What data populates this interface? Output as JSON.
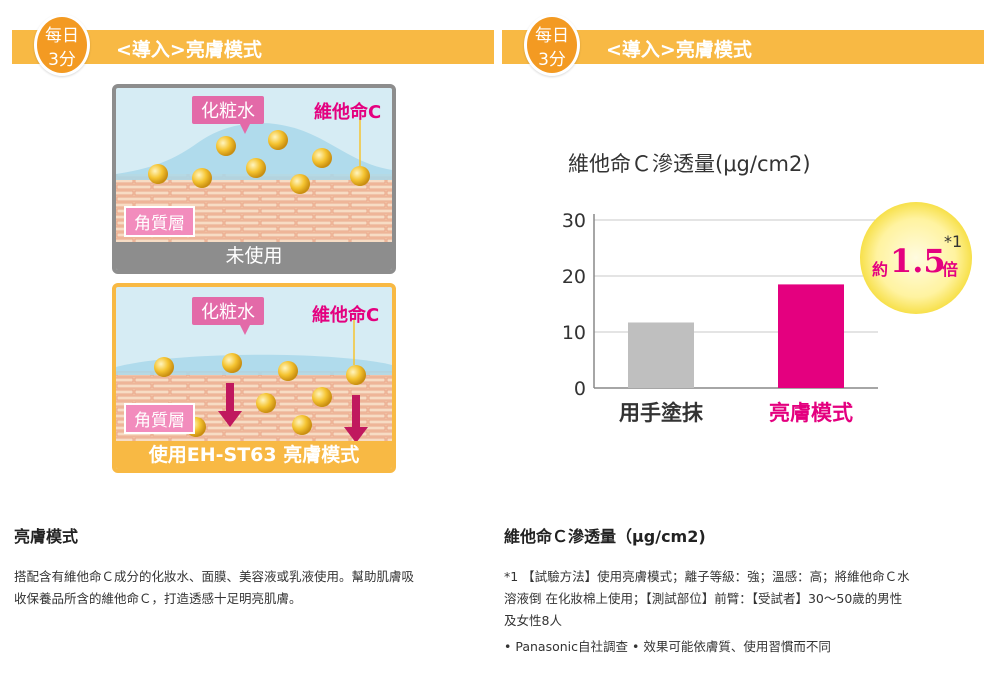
{
  "left_panel": {
    "badge": {
      "line1": "每日",
      "line2": "3分"
    },
    "header_title": "<導入>亮膚模式",
    "illustration_before": {
      "toner_label": "化粧水",
      "vitamin_label": "維他命C",
      "layer_label": "角質層",
      "caption": "未使用"
    },
    "illustration_after": {
      "toner_label": "化粧水",
      "vitamin_label": "維他命C",
      "layer_label": "角質層",
      "caption": "使用EH-ST63 亮膚模式"
    },
    "section_title": "亮膚模式",
    "description_line1": "搭配含有維他命Ｃ成分的化妝水、面膜、美容液或乳液使用。幫助肌膚吸",
    "description_line2": "收保養品所含的維他命Ｃ，打造透感十足明亮肌膚。"
  },
  "right_panel": {
    "badge": {
      "line1": "每日",
      "line2": "3分"
    },
    "header_title": "<導入>亮膚模式",
    "section_title": "維他命Ｃ滲透量（μg/cm2)",
    "note_line1": "*1 【試驗方法】使用亮膚模式；離子等級：強；溫感：高；將維他命Ｃ水",
    "note_line2": "溶液倒 在化妝棉上使用；【測試部位】前臂：【受試者】30～50歲的男性",
    "note_line3": "及女性8人",
    "note_line4": "• Panasonic自社調查 • 效果可能依膚質、使用習慣而不同",
    "callout": {
      "prefix": "約",
      "value": "1.5",
      "suffix": "倍",
      "footnote": "*1"
    }
  },
  "chart_data": {
    "type": "bar",
    "title": "維他命Ｃ滲透量(μg/cm2)",
    "categories": [
      "用手塗抹",
      "亮膚模式"
    ],
    "values": [
      11.7,
      18.5
    ],
    "colors": [
      "#bfbfbf",
      "#e4007f"
    ],
    "label_colors": [
      "#333333",
      "#e4007f"
    ],
    "yticks": [
      0,
      10,
      20,
      30
    ],
    "ylim": [
      0,
      30
    ],
    "xlabel": "",
    "ylabel": "",
    "grid": true
  },
  "colors": {
    "header": "#f8b944",
    "badge": "#f39a22",
    "accent_pink": "#e4007f",
    "toner_tag": "#e36aa8"
  }
}
